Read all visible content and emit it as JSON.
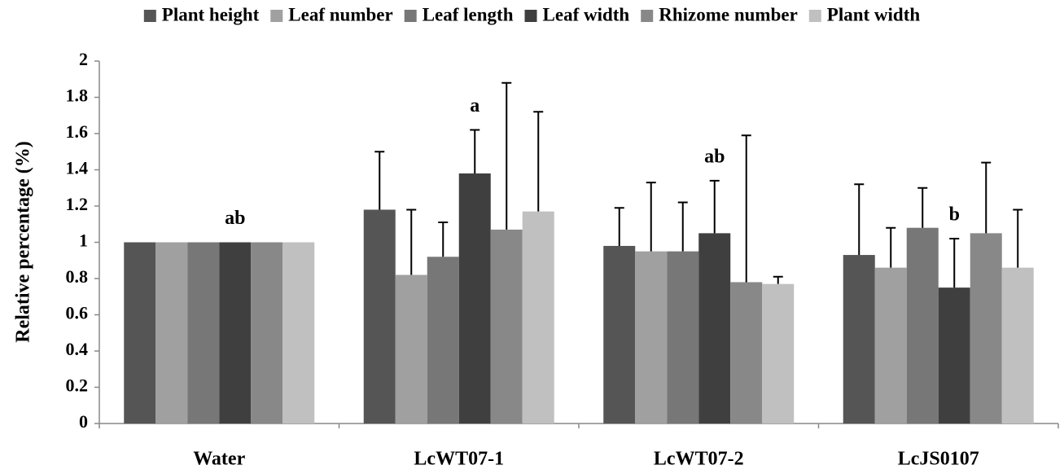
{
  "chart_data": {
    "type": "bar",
    "y_label": "Relative percentage (%)",
    "categories": [
      "Water",
      "LcWT07-1",
      "LcWT07-2",
      "LcJS0107"
    ],
    "series": [
      {
        "name": "Plant height",
        "color": "#555555",
        "values": [
          1,
          1.18,
          0.98,
          0.93
        ],
        "errors": [
          null,
          0.32,
          0.21,
          0.39
        ]
      },
      {
        "name": "Leaf number",
        "color": "#a0a0a0",
        "values": [
          1,
          0.82,
          0.95,
          0.86
        ],
        "errors": [
          null,
          0.36,
          0.38,
          0.22
        ]
      },
      {
        "name": "Leaf length",
        "color": "#777777",
        "values": [
          1,
          0.92,
          0.95,
          1.08
        ],
        "errors": [
          null,
          0.19,
          0.27,
          0.22
        ]
      },
      {
        "name": "Leaf width",
        "color": "#3f3f3f",
        "values": [
          1,
          1.38,
          1.05,
          0.75
        ],
        "errors": [
          null,
          0.24,
          0.29,
          0.27
        ]
      },
      {
        "name": "Rhizome number",
        "color": "#888888",
        "values": [
          1,
          1.07,
          0.78,
          1.05
        ],
        "errors": [
          null,
          0.81,
          0.81,
          0.39
        ]
      },
      {
        "name": "Plant width",
        "color": "#c0c0c0",
        "values": [
          1,
          1.17,
          0.77,
          0.86
        ],
        "errors": [
          null,
          0.55,
          0.04,
          0.32
        ]
      }
    ],
    "annotations": [
      {
        "text": "ab",
        "category": "Water",
        "series": "Leaf width"
      },
      {
        "text": "a",
        "category": "LcWT07-1",
        "series": "Leaf width"
      },
      {
        "text": "ab",
        "category": "LcWT07-2",
        "series": "Leaf width"
      },
      {
        "text": "b",
        "category": "LcJS0107",
        "series": "Leaf width"
      }
    ],
    "ylim": [
      0,
      2
    ],
    "yticks": [
      0,
      0.2,
      0.4,
      0.6,
      0.8,
      1,
      1.2,
      1.4,
      1.6,
      1.8,
      2
    ],
    "legend": "top"
  }
}
